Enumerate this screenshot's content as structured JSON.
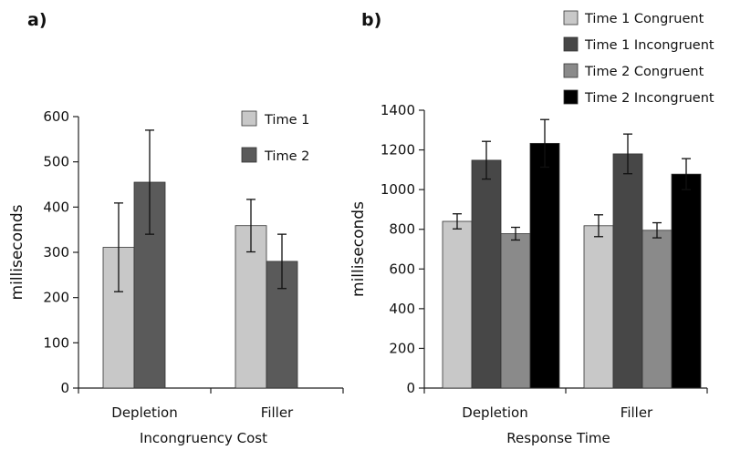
{
  "chart_data": [
    {
      "type": "bar",
      "panel_label": "a)",
      "xlabel": "Incongruency Cost",
      "ylabel": "milliseconds",
      "ylim": [
        0,
        600
      ],
      "yticks": [
        0,
        100,
        200,
        300,
        400,
        500,
        600
      ],
      "categories": [
        "Depletion",
        "Filler"
      ],
      "grid": false,
      "legend_position": "top-right",
      "series": [
        {
          "name": "Time 1",
          "values": [
            311,
            359
          ],
          "errors": [
            98,
            58
          ],
          "color": "#c8c8c8"
        },
        {
          "name": "Time 2",
          "values": [
            455,
            280
          ],
          "errors": [
            115,
            60
          ],
          "color": "#5a5a5a"
        }
      ]
    },
    {
      "type": "bar",
      "panel_label": "b)",
      "xlabel": "Response Time",
      "ylabel": "milliseconds",
      "ylim": [
        0,
        1400
      ],
      "yticks": [
        0,
        200,
        400,
        600,
        800,
        1000,
        1200,
        1400
      ],
      "categories": [
        "Depletion",
        "Filler"
      ],
      "grid": false,
      "legend_position": "top-right",
      "series": [
        {
          "name": "Time 1 Congruent",
          "values": [
            840,
            818
          ],
          "errors": [
            38,
            55
          ],
          "color": "#c8c8c8"
        },
        {
          "name": "Time 1 Incongruent",
          "values": [
            1148,
            1180
          ],
          "errors": [
            95,
            100
          ],
          "color": "#474747"
        },
        {
          "name": "Time 2 Congruent",
          "values": [
            778,
            795
          ],
          "errors": [
            32,
            38
          ],
          "color": "#8a8a8a"
        },
        {
          "name": "Time 2 Incongruent",
          "values": [
            1233,
            1078
          ],
          "errors": [
            120,
            78
          ],
          "color": "#000000"
        }
      ]
    }
  ]
}
